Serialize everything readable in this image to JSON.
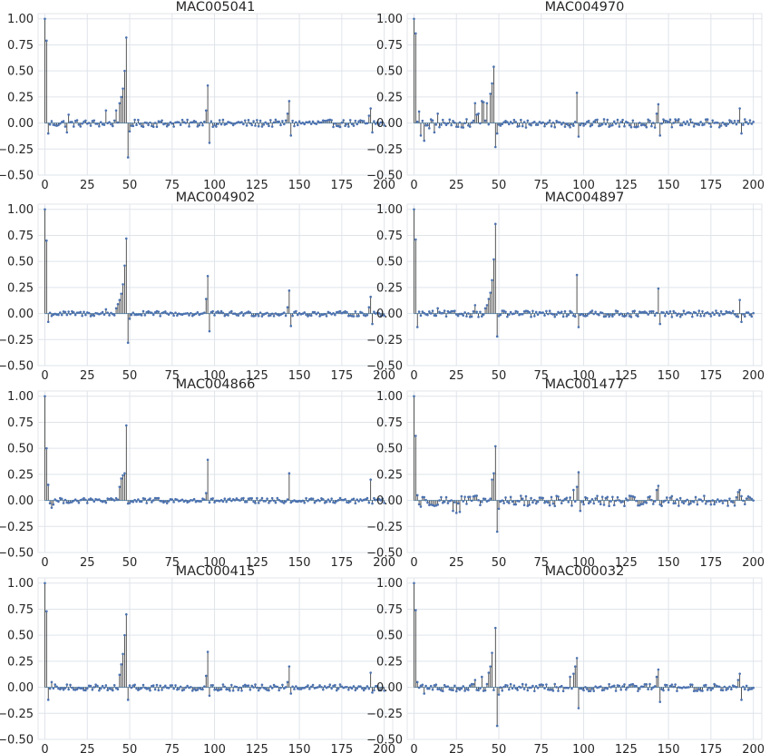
{
  "figure_title": "",
  "colors": {
    "stem": "#2a2a2a",
    "marker": "#4c72b0",
    "baseline": "#7aa6c9",
    "grid": "#dfe4ea",
    "frame": "#e3e6ea",
    "background": "#ffffff"
  },
  "chart_data": [
    {
      "type": "stem",
      "title": "MAC005041",
      "xlabel": "",
      "ylabel": "",
      "xlim": [
        -4,
        205
      ],
      "ylim": [
        -0.5,
        1.05
      ],
      "xticks": [
        0,
        25,
        50,
        75,
        100,
        125,
        150,
        175,
        200
      ],
      "xtick_labels": [
        "0",
        "25",
        "50",
        "75",
        "100",
        "125",
        "150",
        "175",
        "200"
      ],
      "yticks": [
        -0.5,
        -0.25,
        0,
        0.25,
        0.5,
        0.75,
        1
      ],
      "ytick_labels": [
        "−0.50",
        "−0.25",
        "0.00",
        "0.25",
        "0.50",
        "0.75",
        "1.00"
      ],
      "grid": true,
      "peaks": [
        [
          0,
          1.0
        ],
        [
          1,
          0.79
        ],
        [
          2,
          -0.1
        ],
        [
          14,
          0.08
        ],
        [
          13,
          -0.09
        ],
        [
          36,
          0.12
        ],
        [
          42,
          0.12
        ],
        [
          44,
          0.19
        ],
        [
          45,
          0.25
        ],
        [
          46,
          0.33
        ],
        [
          47,
          0.5
        ],
        [
          48,
          0.82
        ],
        [
          49,
          -0.33
        ],
        [
          50,
          -0.08
        ],
        [
          95,
          0.12
        ],
        [
          96,
          0.36
        ],
        [
          97,
          -0.19
        ],
        [
          143,
          0.09
        ],
        [
          144,
          0.21
        ],
        [
          145,
          -0.12
        ],
        [
          191,
          0.07
        ],
        [
          192,
          0.14
        ],
        [
          193,
          -0.09
        ]
      ],
      "noise_amplitude": 0.035
    },
    {
      "type": "stem",
      "title": "MAC004970",
      "xlabel": "",
      "ylabel": "",
      "xlim": [
        -4,
        205
      ],
      "ylim": [
        -0.5,
        1.05
      ],
      "xticks": [
        0,
        25,
        50,
        75,
        100,
        125,
        150,
        175,
        200
      ],
      "xtick_labels": [
        "0",
        "25",
        "50",
        "75",
        "100",
        "125",
        "150",
        "175",
        "200"
      ],
      "yticks": [
        -0.5,
        -0.25,
        0,
        0.25,
        0.5,
        0.75,
        1
      ],
      "ytick_labels": [
        "−0.50",
        "−0.25",
        "0.00",
        "0.25",
        "0.50",
        "0.75",
        "1.00"
      ],
      "grid": true,
      "peaks": [
        [
          0,
          1.0
        ],
        [
          1,
          0.86
        ],
        [
          3,
          0.11
        ],
        [
          4,
          -0.12
        ],
        [
          6,
          -0.17
        ],
        [
          9,
          -0.05
        ],
        [
          12,
          -0.09
        ],
        [
          14,
          0.09
        ],
        [
          36,
          0.19
        ],
        [
          37,
          0.08
        ],
        [
          38,
          0.09
        ],
        [
          40,
          0.21
        ],
        [
          41,
          0.2
        ],
        [
          43,
          0.19
        ],
        [
          45,
          0.28
        ],
        [
          46,
          0.38
        ],
        [
          47,
          0.54
        ],
        [
          48,
          -0.23
        ],
        [
          49,
          -0.1
        ],
        [
          96,
          0.29
        ],
        [
          97,
          -0.13
        ],
        [
          143,
          0.09
        ],
        [
          144,
          0.18
        ],
        [
          145,
          -0.12
        ],
        [
          192,
          0.14
        ],
        [
          193,
          -0.1
        ]
      ],
      "noise_amplitude": 0.04
    },
    {
      "type": "stem",
      "title": "MAC004902",
      "xlabel": "",
      "ylabel": "",
      "xlim": [
        -4,
        205
      ],
      "ylim": [
        -0.5,
        1.05
      ],
      "xticks": [
        0,
        25,
        50,
        75,
        100,
        125,
        150,
        175,
        200
      ],
      "xtick_labels": [
        "0",
        "25",
        "50",
        "75",
        "100",
        "125",
        "150",
        "175",
        "200"
      ],
      "yticks": [
        -0.5,
        -0.25,
        0,
        0.25,
        0.5,
        0.75,
        1
      ],
      "ytick_labels": [
        "−0.50",
        "−0.25",
        "0.00",
        "0.25",
        "0.50",
        "0.75",
        "1.00"
      ],
      "grid": true,
      "peaks": [
        [
          0,
          1.0
        ],
        [
          1,
          0.7
        ],
        [
          2,
          -0.08
        ],
        [
          36,
          0.04
        ],
        [
          42,
          0.05
        ],
        [
          43,
          0.09
        ],
        [
          44,
          0.13
        ],
        [
          45,
          0.19
        ],
        [
          46,
          0.28
        ],
        [
          47,
          0.46
        ],
        [
          48,
          0.72
        ],
        [
          49,
          -0.28
        ],
        [
          50,
          -0.05
        ],
        [
          95,
          0.14
        ],
        [
          96,
          0.36
        ],
        [
          97,
          -0.17
        ],
        [
          143,
          0.06
        ],
        [
          144,
          0.22
        ],
        [
          145,
          -0.12
        ],
        [
          191,
          0.06
        ],
        [
          192,
          0.16
        ],
        [
          193,
          -0.1
        ]
      ],
      "noise_amplitude": 0.025
    },
    {
      "type": "stem",
      "title": "MAC004897",
      "xlabel": "",
      "ylabel": "",
      "xlim": [
        -4,
        205
      ],
      "ylim": [
        -0.5,
        1.05
      ],
      "xticks": [
        0,
        25,
        50,
        75,
        100,
        125,
        150,
        175,
        200
      ],
      "xtick_labels": [
        "0",
        "25",
        "50",
        "75",
        "100",
        "125",
        "150",
        "175",
        "200"
      ],
      "yticks": [
        -0.5,
        -0.25,
        0,
        0.25,
        0.5,
        0.75,
        1
      ],
      "ytick_labels": [
        "−0.50",
        "−0.25",
        "0.00",
        "0.25",
        "0.50",
        "0.75",
        "1.00"
      ],
      "grid": true,
      "peaks": [
        [
          0,
          1.0
        ],
        [
          1,
          0.71
        ],
        [
          2,
          -0.13
        ],
        [
          14,
          0.05
        ],
        [
          36,
          0.08
        ],
        [
          42,
          0.05
        ],
        [
          43,
          0.08
        ],
        [
          44,
          0.14
        ],
        [
          45,
          0.2
        ],
        [
          46,
          0.32
        ],
        [
          47,
          0.52
        ],
        [
          48,
          0.86
        ],
        [
          49,
          -0.22
        ],
        [
          96,
          0.37
        ],
        [
          97,
          -0.13
        ],
        [
          144,
          0.24
        ],
        [
          145,
          -0.1
        ],
        [
          192,
          0.13
        ],
        [
          193,
          -0.08
        ]
      ],
      "noise_amplitude": 0.03
    },
    {
      "type": "stem",
      "title": "MAC004866",
      "xlabel": "",
      "ylabel": "",
      "xlim": [
        -4,
        205
      ],
      "ylim": [
        -0.5,
        1.05
      ],
      "xticks": [
        0,
        25,
        50,
        75,
        100,
        125,
        150,
        175,
        200
      ],
      "xtick_labels": [
        "0",
        "25",
        "50",
        "75",
        "100",
        "125",
        "150",
        "175",
        "200"
      ],
      "yticks": [
        -0.5,
        -0.25,
        0,
        0.25,
        0.5,
        0.75,
        1
      ],
      "ytick_labels": [
        "−0.50",
        "−0.25",
        "0.00",
        "0.25",
        "0.50",
        "0.75",
        "1.00"
      ],
      "grid": true,
      "peaks": [
        [
          0,
          1.0
        ],
        [
          1,
          0.5
        ],
        [
          2,
          0.15
        ],
        [
          4,
          -0.07
        ],
        [
          5,
          -0.04
        ],
        [
          44,
          0.13
        ],
        [
          45,
          0.21
        ],
        [
          46,
          0.24
        ],
        [
          47,
          0.26
        ],
        [
          48,
          0.72
        ],
        [
          49,
          -0.03
        ],
        [
          95,
          0.07
        ],
        [
          96,
          0.39
        ],
        [
          97,
          -0.02
        ],
        [
          144,
          0.26
        ],
        [
          145,
          -0.02
        ],
        [
          192,
          0.2
        ],
        [
          193,
          -0.03
        ]
      ],
      "noise_amplitude": 0.025
    },
    {
      "type": "stem",
      "title": "MAC001477",
      "xlabel": "",
      "ylabel": "",
      "xlim": [
        -4,
        205
      ],
      "ylim": [
        -0.5,
        1.05
      ],
      "xticks": [
        0,
        25,
        50,
        75,
        100,
        125,
        150,
        175,
        200
      ],
      "xtick_labels": [
        "0",
        "25",
        "50",
        "75",
        "100",
        "125",
        "150",
        "175",
        "200"
      ],
      "yticks": [
        -0.5,
        -0.25,
        0,
        0.25,
        0.5,
        0.75,
        1
      ],
      "ytick_labels": [
        "−0.50",
        "−0.25",
        "0.00",
        "0.25",
        "0.50",
        "0.75",
        "1.00"
      ],
      "grid": true,
      "peaks": [
        [
          0,
          1.0
        ],
        [
          1,
          0.62
        ],
        [
          2,
          0.05
        ],
        [
          4,
          -0.06
        ],
        [
          25,
          -0.12
        ],
        [
          23,
          -0.1
        ],
        [
          27,
          -0.11
        ],
        [
          46,
          0.2
        ],
        [
          47,
          0.26
        ],
        [
          48,
          0.52
        ],
        [
          49,
          -0.3
        ],
        [
          50,
          -0.08
        ],
        [
          94,
          0.1
        ],
        [
          96,
          0.13
        ],
        [
          97,
          0.27
        ],
        [
          98,
          -0.1
        ],
        [
          143,
          0.1
        ],
        [
          144,
          0.14
        ],
        [
          191,
          0.08
        ],
        [
          192,
          0.1
        ]
      ],
      "noise_amplitude": 0.05
    },
    {
      "type": "stem",
      "title": "MAC000415",
      "xlabel": "",
      "ylabel": "",
      "xlim": [
        -4,
        205
      ],
      "ylim": [
        -0.5,
        1.05
      ],
      "xticks": [
        0,
        25,
        50,
        75,
        100,
        125,
        150,
        175,
        200
      ],
      "xtick_labels": [
        "0",
        "25",
        "50",
        "75",
        "100",
        "125",
        "150",
        "175",
        "200"
      ],
      "yticks": [
        -0.5,
        -0.25,
        0,
        0.25,
        0.5,
        0.75,
        1
      ],
      "ytick_labels": [
        "−0.50",
        "−0.25",
        "0.00",
        "0.25",
        "0.50",
        "0.75",
        "1.00"
      ],
      "grid": true,
      "peaks": [
        [
          0,
          1.0
        ],
        [
          1,
          0.73
        ],
        [
          2,
          -0.12
        ],
        [
          4,
          0.05
        ],
        [
          44,
          0.12
        ],
        [
          45,
          0.22
        ],
        [
          46,
          0.32
        ],
        [
          47,
          0.5
        ],
        [
          48,
          0.7
        ],
        [
          49,
          -0.12
        ],
        [
          95,
          0.11
        ],
        [
          96,
          0.34
        ],
        [
          97,
          -0.08
        ],
        [
          143,
          0.05
        ],
        [
          144,
          0.2
        ],
        [
          145,
          -0.06
        ],
        [
          192,
          0.14
        ],
        [
          193,
          -0.05
        ]
      ],
      "noise_amplitude": 0.03
    },
    {
      "type": "stem",
      "title": "MAC000032",
      "xlabel": "",
      "ylabel": "",
      "xlim": [
        -4,
        205
      ],
      "ylim": [
        -0.5,
        1.05
      ],
      "xticks": [
        0,
        25,
        50,
        75,
        100,
        125,
        150,
        175,
        200
      ],
      "xtick_labels": [
        "0",
        "25",
        "50",
        "75",
        "100",
        "125",
        "150",
        "175",
        "200"
      ],
      "yticks": [
        -0.5,
        -0.25,
        0,
        0.25,
        0.5,
        0.75,
        1
      ],
      "ytick_labels": [
        "−0.50",
        "−0.25",
        "0.00",
        "0.25",
        "0.50",
        "0.75",
        "1.00"
      ],
      "grid": true,
      "peaks": [
        [
          0,
          1.0
        ],
        [
          1,
          0.74
        ],
        [
          2,
          0.05
        ],
        [
          6,
          -0.06
        ],
        [
          36,
          0.07
        ],
        [
          40,
          0.1
        ],
        [
          44,
          0.14
        ],
        [
          45,
          0.2
        ],
        [
          46,
          0.33
        ],
        [
          48,
          0.57
        ],
        [
          49,
          -0.37
        ],
        [
          50,
          -0.07
        ],
        [
          92,
          0.1
        ],
        [
          94,
          0.13
        ],
        [
          95,
          0.2
        ],
        [
          96,
          0.28
        ],
        [
          97,
          -0.2
        ],
        [
          143,
          0.1
        ],
        [
          144,
          0.17
        ],
        [
          145,
          -0.14
        ],
        [
          191,
          0.07
        ],
        [
          192,
          0.13
        ],
        [
          193,
          -0.12
        ]
      ],
      "noise_amplitude": 0.035
    }
  ]
}
